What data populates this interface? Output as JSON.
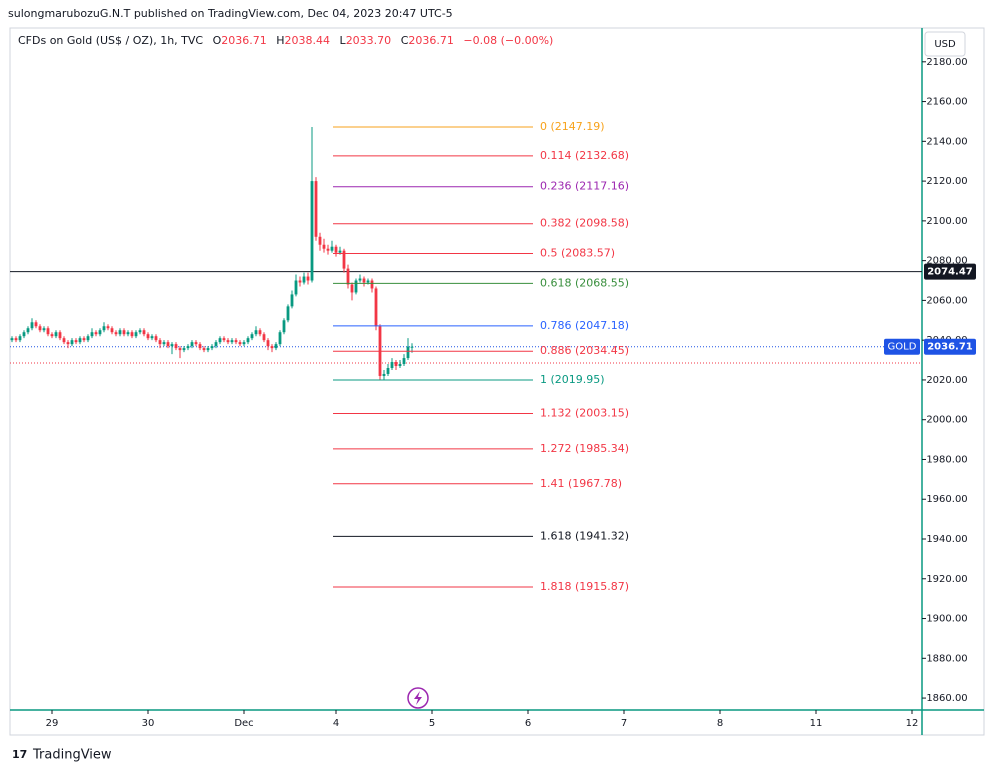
{
  "header": {
    "publish": "sulongmarubozuG.N.T published on TradingView.com, Dec 04, 2023 20:47 UTC-5",
    "symbol": "CFDs on Gold (US$ / OZ), 1h, TVC",
    "ohlc": [
      {
        "key": "O",
        "value": "2036.71"
      },
      {
        "key": "H",
        "value": "2038.44"
      },
      {
        "key": "L",
        "value": "2033.70"
      },
      {
        "key": "C",
        "value": "2036.71"
      }
    ],
    "change": "−0.08 (−0.00%)",
    "currency": "USD"
  },
  "footer": {
    "brand": "TradingView"
  },
  "chart_data": {
    "type": "candlestick",
    "up_color": "#089981",
    "down_color": "#f23645",
    "xlim": [
      -0.5,
      227.5
    ],
    "ylim": [
      1854,
      2197
    ],
    "xticks": [
      {
        "value": 10,
        "label": "29"
      },
      {
        "value": 34,
        "label": "30"
      },
      {
        "value": 58,
        "label": "Dec"
      },
      {
        "value": 81,
        "label": "4"
      },
      {
        "value": 105,
        "label": "5"
      },
      {
        "value": 129,
        "label": "6"
      },
      {
        "value": 153,
        "label": "7"
      },
      {
        "value": 177,
        "label": "8"
      },
      {
        "value": 201,
        "label": "11"
      },
      {
        "value": 225,
        "label": "12"
      }
    ],
    "yticks": [
      {
        "value": 1860,
        "label": "1860.00"
      },
      {
        "value": 1880,
        "label": "1880.00"
      },
      {
        "value": 1900,
        "label": "1900.00"
      },
      {
        "value": 1920,
        "label": "1920.00"
      },
      {
        "value": 1940,
        "label": "1940.00"
      },
      {
        "value": 1960,
        "label": "1960.00"
      },
      {
        "value": 1980,
        "label": "1980.00"
      },
      {
        "value": 2000,
        "label": "2000.00"
      },
      {
        "value": 2020,
        "label": "2020.00"
      },
      {
        "value": 2040,
        "label": "2040.00"
      },
      {
        "value": 2060,
        "label": "2060.00"
      },
      {
        "value": 2080,
        "label": "2080.00"
      },
      {
        "value": 2100,
        "label": "2100.00"
      },
      {
        "value": 2120,
        "label": "2120.00"
      },
      {
        "value": 2140,
        "label": "2140.00"
      },
      {
        "value": 2160,
        "label": "2160.00"
      },
      {
        "value": 2180,
        "label": "2180.00"
      }
    ],
    "candles": [
      [
        2040,
        2042,
        2039,
        2041
      ],
      [
        2041,
        2042,
        2039,
        2040
      ],
      [
        2040,
        2043,
        2039,
        2042
      ],
      [
        2042,
        2045,
        2041,
        2044
      ],
      [
        2044,
        2047,
        2043,
        2046
      ],
      [
        2046,
        2051,
        2045,
        2049
      ],
      [
        2049,
        2050,
        2046,
        2047
      ],
      [
        2047,
        2048,
        2044,
        2045
      ],
      [
        2045,
        2047,
        2044,
        2046
      ],
      [
        2046,
        2047,
        2042,
        2043
      ],
      [
        2043,
        2044,
        2041,
        2042
      ],
      [
        2042,
        2045,
        2041,
        2044
      ],
      [
        2044,
        2045,
        2040,
        2041
      ],
      [
        2041,
        2042,
        2038,
        2039
      ],
      [
        2039,
        2040,
        2036,
        2038
      ],
      [
        2038,
        2041,
        2037,
        2040
      ],
      [
        2040,
        2041,
        2038,
        2039
      ],
      [
        2039,
        2042,
        2038,
        2041
      ],
      [
        2041,
        2042,
        2039,
        2040
      ],
      [
        2040,
        2043,
        2039,
        2042
      ],
      [
        2042,
        2046,
        2041,
        2044
      ],
      [
        2044,
        2045,
        2042,
        2043
      ],
      [
        2043,
        2046,
        2042,
        2045
      ],
      [
        2045,
        2049,
        2044,
        2047
      ],
      [
        2047,
        2048,
        2045,
        2046
      ],
      [
        2046,
        2047,
        2043,
        2044
      ],
      [
        2044,
        2045,
        2042,
        2043
      ],
      [
        2043,
        2046,
        2042,
        2045
      ],
      [
        2045,
        2046,
        2042,
        2043
      ],
      [
        2043,
        2045,
        2042,
        2044
      ],
      [
        2044,
        2045,
        2041,
        2042
      ],
      [
        2042,
        2045,
        2041,
        2044
      ],
      [
        2044,
        2046,
        2043,
        2045
      ],
      [
        2045,
        2046,
        2042,
        2043
      ],
      [
        2043,
        2044,
        2040,
        2041
      ],
      [
        2041,
        2043,
        2040,
        2042
      ],
      [
        2042,
        2043,
        2039,
        2040
      ],
      [
        2040,
        2041,
        2036,
        2038
      ],
      [
        2038,
        2040,
        2037,
        2039
      ],
      [
        2039,
        2040,
        2036,
        2037
      ],
      [
        2037,
        2039,
        2033,
        2038
      ],
      [
        2038,
        2039,
        2035,
        2036
      ],
      [
        2036,
        2037,
        2031,
        2035
      ],
      [
        2035,
        2037,
        2034,
        2036
      ],
      [
        2036,
        2038,
        2035,
        2037
      ],
      [
        2037,
        2040,
        2036,
        2039
      ],
      [
        2039,
        2040,
        2037,
        2038
      ],
      [
        2038,
        2039,
        2035,
        2036
      ],
      [
        2036,
        2037,
        2034,
        2035
      ],
      [
        2035,
        2037,
        2034,
        2036
      ],
      [
        2036,
        2038,
        2035,
        2037
      ],
      [
        2037,
        2040,
        2036,
        2039
      ],
      [
        2039,
        2042,
        2038,
        2041
      ],
      [
        2041,
        2042,
        2039,
        2040
      ],
      [
        2040,
        2041,
        2038,
        2039
      ],
      [
        2039,
        2041,
        2038,
        2040
      ],
      [
        2040,
        2041,
        2038,
        2039
      ],
      [
        2039,
        2040,
        2037,
        2038
      ],
      [
        2038,
        2040,
        2037,
        2039
      ],
      [
        2039,
        2042,
        2038,
        2041
      ],
      [
        2041,
        2044,
        2040,
        2043
      ],
      [
        2043,
        2047,
        2042,
        2045
      ],
      [
        2045,
        2046,
        2042,
        2043
      ],
      [
        2043,
        2044,
        2039,
        2040
      ],
      [
        2040,
        2041,
        2035,
        2037
      ],
      [
        2037,
        2038,
        2034,
        2036
      ],
      [
        2036,
        2039,
        2035,
        2038
      ],
      [
        2038,
        2045,
        2037,
        2044
      ],
      [
        2044,
        2051,
        2043,
        2050
      ],
      [
        2050,
        2058,
        2049,
        2057
      ],
      [
        2057,
        2065,
        2056,
        2063
      ],
      [
        2063,
        2073,
        2062,
        2070
      ],
      [
        2070,
        2072,
        2067,
        2069
      ],
      [
        2069,
        2074,
        2068,
        2072
      ],
      [
        2072,
        2074,
        2068,
        2070
      ],
      [
        2070,
        2147.19,
        2069,
        2120
      ],
      [
        2120,
        2122,
        2090,
        2092
      ],
      [
        2092,
        2094,
        2085,
        2088
      ],
      [
        2088,
        2091,
        2084,
        2086
      ],
      [
        2086,
        2088,
        2083,
        2085
      ],
      [
        2085,
        2090,
        2084,
        2087
      ],
      [
        2087,
        2088,
        2082,
        2084
      ],
      [
        2084,
        2087,
        2083,
        2085
      ],
      [
        2085,
        2086,
        2074,
        2076
      ],
      [
        2076,
        2078,
        2066,
        2068
      ],
      [
        2068,
        2069,
        2060,
        2064
      ],
      [
        2064,
        2071,
        2063,
        2070
      ],
      [
        2070,
        2073,
        2069,
        2071
      ],
      [
        2071,
        2072,
        2067,
        2069
      ],
      [
        2069,
        2071,
        2068,
        2070
      ],
      [
        2070,
        2071,
        2064,
        2066
      ],
      [
        2066,
        2067,
        2045,
        2047
      ],
      [
        2047,
        2048,
        2019.95,
        2022
      ],
      [
        2022,
        2025,
        2020,
        2023
      ],
      [
        2023,
        2028,
        2022,
        2026
      ],
      [
        2026,
        2031,
        2025,
        2029
      ],
      [
        2029,
        2030,
        2025,
        2027
      ],
      [
        2027,
        2030,
        2026,
        2028
      ],
      [
        2028,
        2033,
        2027,
        2031
      ],
      [
        2031,
        2041,
        2030,
        2036.79
      ],
      [
        2036.71,
        2038.44,
        2033.7,
        2036.71
      ]
    ],
    "fib_levels": [
      {
        "label": "0 (2147.19)",
        "price": 2147.19,
        "color": "#f7a21b"
      },
      {
        "label": "0.114 (2132.68)",
        "price": 2132.68,
        "color": "#f23645"
      },
      {
        "label": "0.236 (2117.16)",
        "price": 2117.16,
        "color": "#9c27b0"
      },
      {
        "label": "0.382 (2098.58)",
        "price": 2098.58,
        "color": "#f23645"
      },
      {
        "label": "0.5 (2083.57)",
        "price": 2083.57,
        "color": "#f23645"
      },
      {
        "label": "0.618 (2068.55)",
        "price": 2068.55,
        "color": "#388e3c"
      },
      {
        "label": "0.786 (2047.18)",
        "price": 2047.18,
        "color": "#2962ff"
      },
      {
        "label": "0.886 (2034.45)",
        "price": 2034.45,
        "color": "#f23645"
      },
      {
        "label": "1 (2019.95)",
        "price": 2019.95,
        "color": "#089981"
      },
      {
        "label": "1.132 (2003.15)",
        "price": 2003.15,
        "color": "#f23645"
      },
      {
        "label": "1.272 (1985.34)",
        "price": 1985.34,
        "color": "#f23645"
      },
      {
        "label": "1.41 (1967.78)",
        "price": 1967.78,
        "color": "#f23645"
      },
      {
        "label": "1.618 (1941.32)",
        "price": 1941.32,
        "color": "#131722"
      },
      {
        "label": "1.818 (1915.87)",
        "price": 1915.87,
        "color": "#f23645"
      }
    ],
    "horizontal_line": {
      "price": 2074.47,
      "color": "#131722"
    },
    "prev_close_line": {
      "price": 2028.5,
      "color": "#f23645"
    },
    "last_price": {
      "symbol": "GOLD",
      "price": 2036.71,
      "color": "#1e53e5"
    }
  }
}
